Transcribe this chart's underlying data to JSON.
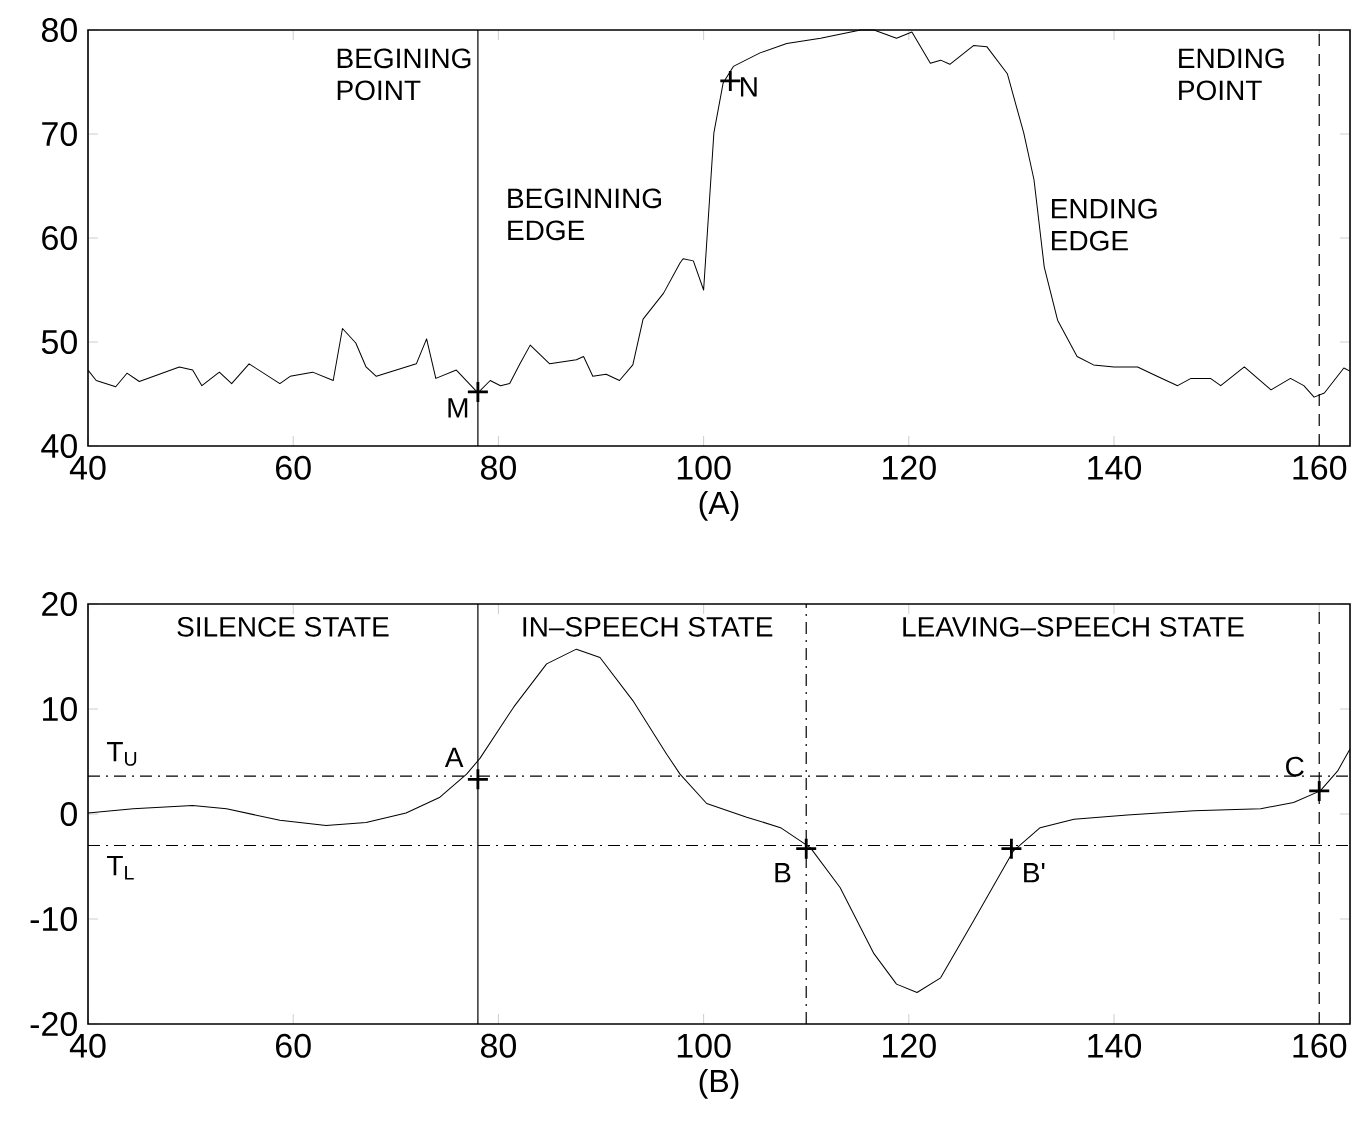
{
  "chart_data": [
    {
      "type": "line",
      "xlabel": "(A)",
      "xlim": [
        40,
        163
      ],
      "ylim": [
        40,
        80
      ],
      "xticks": [
        40,
        60,
        80,
        100,
        120,
        140,
        160
      ],
      "yticks": [
        40,
        50,
        60,
        70,
        80
      ],
      "series": [
        {
          "color": "#000000",
          "x": [
            40,
            40.8,
            42.7,
            43.8,
            45.0,
            48.9,
            50.2,
            51.1,
            52.8,
            54.0,
            55.7,
            58.7,
            59.7,
            61.9,
            63.9,
            64.8,
            66.1,
            67.1,
            68.1,
            72.0,
            73.0,
            73.9,
            75.9,
            78.0,
            79.2,
            80.2,
            81.1,
            82.1,
            83.1,
            85.0,
            87.6,
            88.3,
            89.2,
            90.5,
            91.8,
            93.1,
            94.1,
            96.1,
            97.7,
            98.0,
            99.0,
            100.0,
            101.0,
            101.9,
            102.9,
            105.5,
            108.1,
            111.4,
            115.3,
            116.6,
            118.8,
            120.3,
            122.1,
            123.1,
            124.0,
            126.3,
            127.6,
            129.6,
            131.2,
            132.2,
            133.2,
            134.5,
            136.4,
            138.0,
            140.0,
            142.3,
            144.2,
            146.2,
            147.5,
            149.4,
            150.4,
            152.7,
            155.3,
            157.2,
            158.5,
            159.5,
            160.5,
            162.4,
            163.0
          ],
          "values": [
            47.3,
            46.3,
            45.7,
            47.0,
            46.2,
            47.6,
            47.3,
            45.8,
            47.1,
            46.0,
            47.9,
            46.0,
            46.7,
            47.1,
            46.3,
            51.3,
            49.9,
            47.6,
            46.7,
            47.9,
            50.3,
            46.5,
            47.3,
            45.1,
            46.3,
            45.8,
            46.0,
            47.9,
            49.7,
            47.9,
            48.3,
            48.6,
            46.7,
            46.9,
            46.3,
            47.8,
            52.2,
            54.7,
            57.6,
            58.0,
            57.8,
            55.0,
            70.1,
            74.9,
            76.5,
            77.8,
            78.7,
            79.2,
            80.0,
            80.0,
            79.2,
            79.8,
            76.8,
            77.1,
            76.7,
            78.5,
            78.4,
            75.8,
            70.1,
            65.6,
            57.2,
            52.1,
            48.6,
            47.8,
            47.6,
            47.6,
            46.7,
            45.8,
            46.5,
            46.5,
            45.8,
            47.6,
            45.4,
            46.5,
            45.8,
            44.7,
            45.1,
            47.5,
            47.2
          ]
        },
        {
          "type": "scatter",
          "color": "#000000",
          "marker": "cross",
          "x": [
            78.0,
            102.6
          ],
          "values": [
            45.2,
            75.1
          ]
        }
      ],
      "ref_lines": [
        {
          "axis": "x",
          "value": 78,
          "label": "BEGINING POINT",
          "line_style": "solid",
          "color": "#000000"
        },
        {
          "axis": "x",
          "value": 160,
          "label": "ENDING POINT",
          "line_style": "dashed",
          "color": "#000000"
        }
      ],
      "annotations": [
        "BEGINNING EDGE",
        "ENDING EDGE",
        {
          "text": "M",
          "x": 78.0,
          "y": 45.2
        },
        {
          "text": "N",
          "x": 102.6,
          "y": 75.1
        }
      ]
    },
    {
      "type": "line",
      "xlabel": "(B)",
      "xlim": [
        40,
        163
      ],
      "ylim": [
        -20,
        20
      ],
      "xticks": [
        40,
        60,
        80,
        100,
        120,
        140,
        160
      ],
      "yticks": [
        -20,
        -10,
        0,
        10,
        20
      ],
      "series": [
        {
          "color": "#000000",
          "x": [
            40,
            44.4,
            50.2,
            53.5,
            58.7,
            63.2,
            67.1,
            71.0,
            74.3,
            76.9,
            78.2,
            81.5,
            84.7,
            87.6,
            89.9,
            93.1,
            96.4,
            97.7,
            100.3,
            104.2,
            107.5,
            110.4,
            113.3,
            116.6,
            118.8,
            120.8,
            123.1,
            126.3,
            130.2,
            132.8,
            136.1,
            141.3,
            147.8,
            154.3,
            157.5,
            160.1,
            161.8,
            163.0
          ],
          "values": [
            0.1,
            0.5,
            0.8,
            0.5,
            -0.6,
            -1.1,
            -0.8,
            0.1,
            1.6,
            3.8,
            5.3,
            10.2,
            14.3,
            15.7,
            14.9,
            10.8,
            5.7,
            3.8,
            1.0,
            -0.3,
            -1.3,
            -3.2,
            -7.0,
            -13.3,
            -16.2,
            -17.0,
            -15.6,
            -10.2,
            -3.5,
            -1.3,
            -0.5,
            -0.1,
            0.3,
            0.5,
            1.1,
            2.2,
            4.1,
            6.2
          ]
        },
        {
          "type": "scatter",
          "color": "#000000",
          "marker": "cross",
          "x": [
            78,
            110,
            130,
            160
          ],
          "values": [
            3.3,
            -3.3,
            -3.3,
            2.2
          ]
        }
      ],
      "ref_lines": [
        {
          "axis": "y",
          "value": 3.6,
          "label": "T$_{U}$",
          "line_style": "dashdot",
          "color": "#000000"
        },
        {
          "axis": "y",
          "value": -3,
          "label": "T$_{L}$",
          "line_style": "dashdot",
          "color": "#000000"
        },
        {
          "axis": "x",
          "value": 78,
          "line_style": "solid",
          "color": "#000000"
        },
        {
          "axis": "x",
          "value": 110,
          "line_style": "dashdot",
          "color": "#000000"
        },
        {
          "axis": "x",
          "value": 160,
          "line_style": "dashed",
          "color": "#000000"
        }
      ],
      "annotations": [
        "SILENCE STATE",
        "IN–SPEECH STATE",
        "LEAVING–SPEECH STATE",
        {
          "text": "A",
          "x": 78,
          "y": 3.3
        },
        {
          "text": "B",
          "x": 110,
          "y": -3.3
        },
        {
          "text": "B'",
          "x": 130,
          "y": -3.3
        },
        {
          "text": "C",
          "x": 160,
          "y": 2.2
        }
      ]
    }
  ]
}
